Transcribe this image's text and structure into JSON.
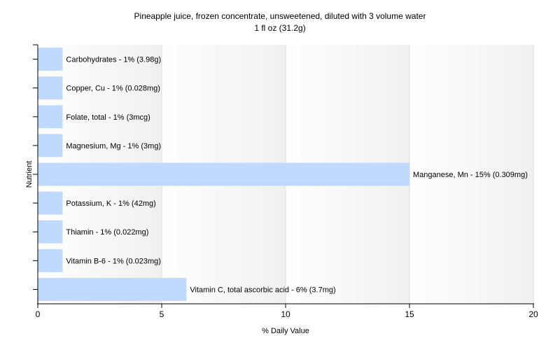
{
  "chart_data": {
    "type": "bar",
    "orientation": "horizontal",
    "title": "Pineapple juice, frozen concentrate, unsweetened, diluted with 3 volume water",
    "subtitle": "1 fl oz (31.2g)",
    "xlabel": "% Daily Value",
    "ylabel": "Nutrient",
    "xlim": [
      0,
      20
    ],
    "xticks": [
      0,
      5,
      10,
      15,
      20
    ],
    "grid": true,
    "legend": "none",
    "bar_color": "#bfd9ff",
    "categories": [
      "Carbohydrates",
      "Copper, Cu",
      "Folate, total",
      "Magnesium, Mg",
      "Manganese, Mn",
      "Potassium, K",
      "Thiamin",
      "Vitamin B-6",
      "Vitamin C, total ascorbic acid"
    ],
    "values": [
      1,
      1,
      1,
      1,
      15,
      1,
      1,
      1,
      6
    ],
    "labels": [
      "Carbohydrates - 1% (3.98g)",
      "Copper, Cu - 1% (0.028mg)",
      "Folate, total - 1% (3mcg)",
      "Magnesium, Mg - 1% (3mg)",
      "Manganese, Mn - 15% (0.309mg)",
      "Potassium, K - 1% (42mg)",
      "Thiamin - 1% (0.022mg)",
      "Vitamin B-6 - 1% (0.023mg)",
      "Vitamin C, total ascorbic acid - 6% (3.7mg)"
    ]
  }
}
